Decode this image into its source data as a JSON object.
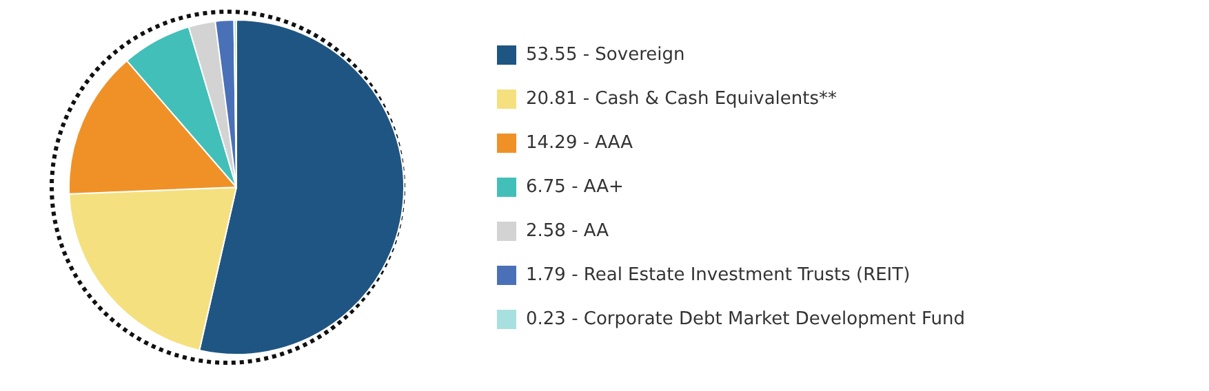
{
  "chart_data": {
    "type": "pie",
    "categories": [
      "53.55 - Sovereign",
      "20.81 - Cash & Cash Equivalents**",
      "14.29 - AAA",
      "6.75 - AA+",
      "2.58 - AA",
      "1.79 - Real Estate Investment Trusts (REIT)",
      "0.23 - Corporate Debt Market Development Fund"
    ],
    "values": [
      53.55,
      20.81,
      14.29,
      6.75,
      2.58,
      1.79,
      0.23
    ],
    "colors": [
      "#1f5582",
      "#f5e07f",
      "#f09127",
      "#42bfb8",
      "#d3d3d3",
      "#4a70b8",
      "#a8dfdf"
    ],
    "legend": "right"
  }
}
